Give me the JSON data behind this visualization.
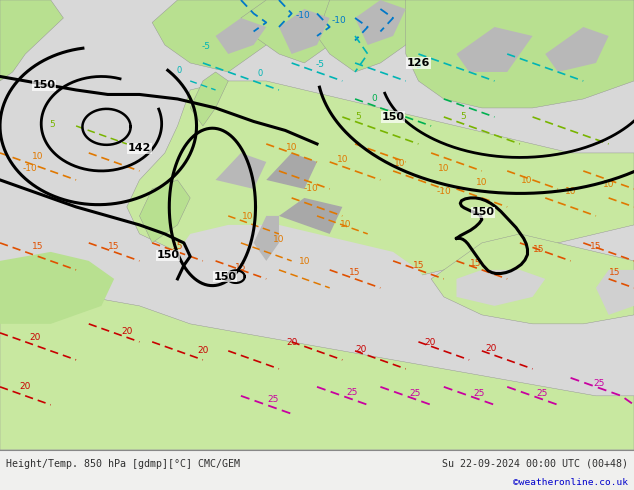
{
  "fig_width": 6.34,
  "fig_height": 4.9,
  "dpi": 100,
  "bottom_text_left": "Height/Temp. 850 hPa [gdmp][°C] CMC/GEM",
  "bottom_text_right": "Su 22-09-2024 00:00 UTC (00+48)",
  "bottom_watermark": "©weatheronline.co.uk",
  "bottom_text_color": "#303030",
  "watermark_color": "#0000cc",
  "ocean_color": "#d8d8d8",
  "land_green_light": "#b8e090",
  "land_green_med": "#c8e8a0",
  "land_gray": "#a8a8a8",
  "land_gray2": "#b8b8b8",
  "sea_blue_light": "#c8e0f0",
  "caption_bg": "#f0f0ee",
  "contour_lw": 2.0
}
